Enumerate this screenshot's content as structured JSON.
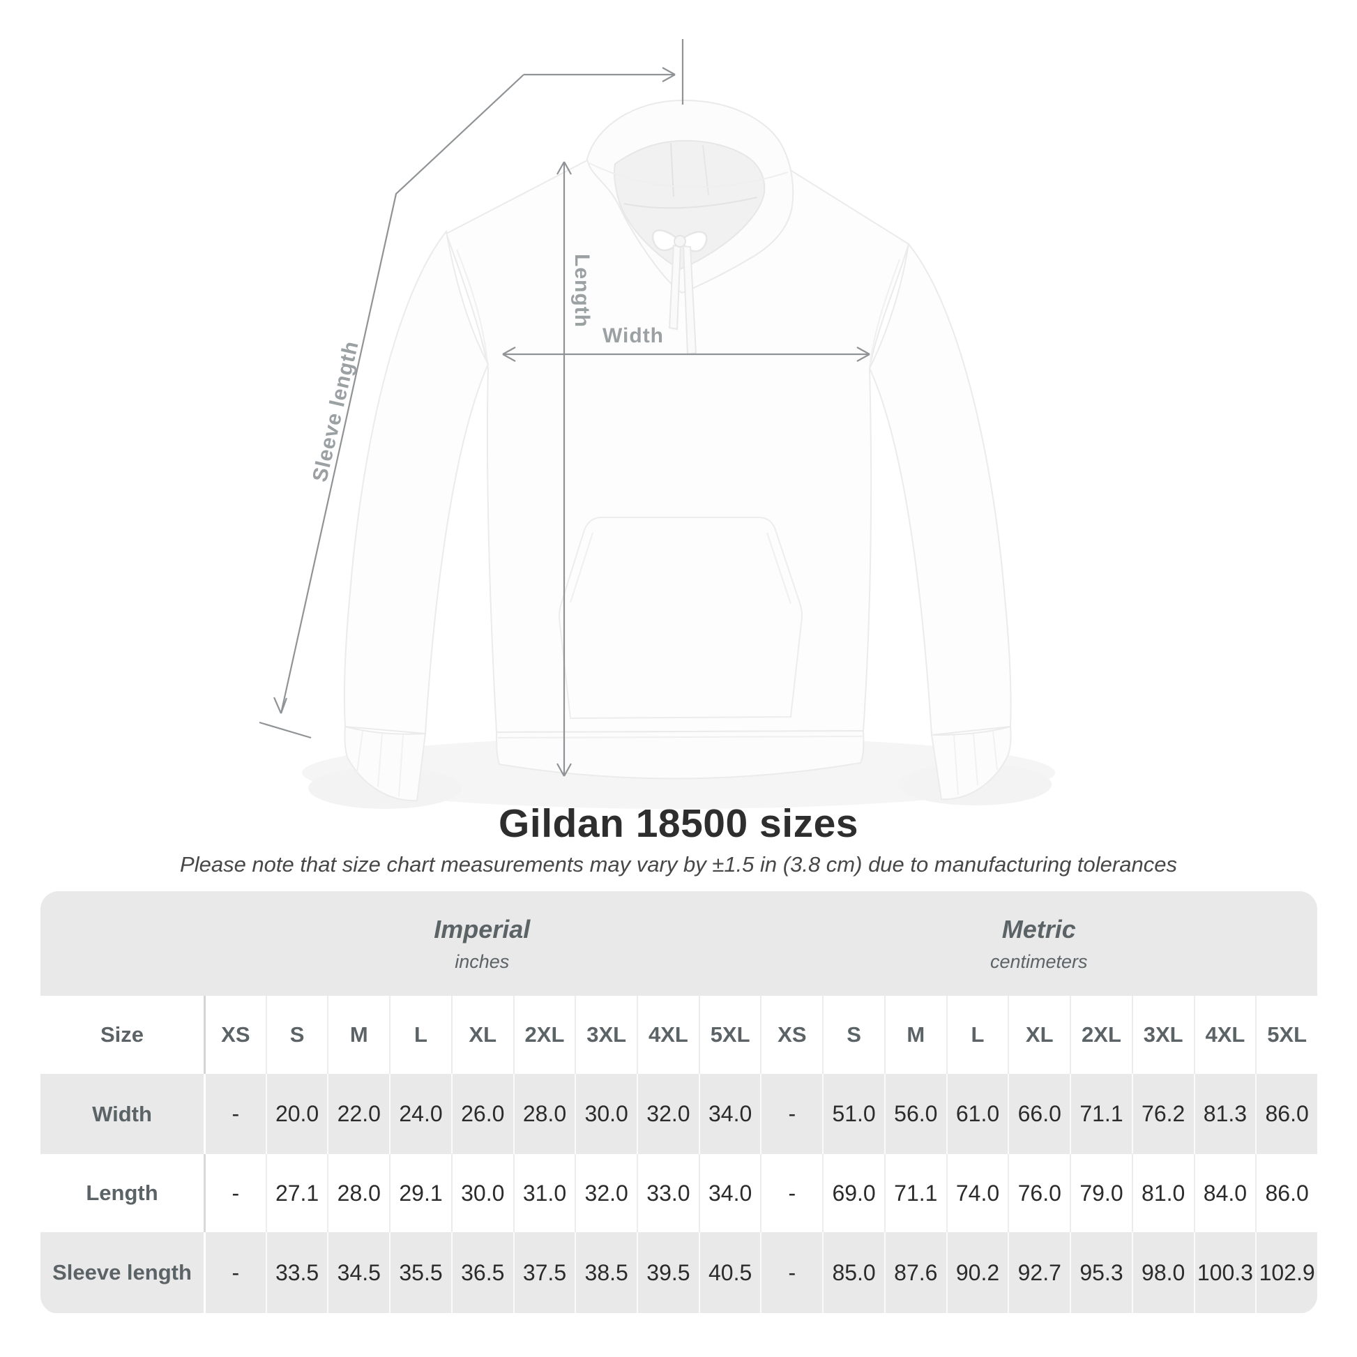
{
  "title": "Gildan 18500 sizes",
  "subtitle": "Please note that size chart measurements may vary by ±1.5 in (3.8 cm) due to manufacturing tolerances",
  "diagram": {
    "length_label": "Length",
    "width_label": "Width",
    "sleeve_label": "Sleeve length",
    "line_color": "#909396",
    "label_color": "#9ba0a3"
  },
  "table": {
    "size_label": "Size",
    "dash": "-"
  },
  "chart_data": {
    "type": "table",
    "title": "Gildan 18500 sizes",
    "note": "Measurements may vary by ±1.5 in (3.8 cm) due to manufacturing tolerances",
    "measurement_rows": [
      "Width",
      "Length",
      "Sleeve length"
    ],
    "groups": [
      {
        "label": "Imperial",
        "unit": "inches",
        "columns": [
          "XS",
          "S",
          "M",
          "L",
          "XL",
          "2XL",
          "3XL",
          "4XL",
          "5XL"
        ],
        "rows": [
          {
            "label": "Width",
            "values": [
              "-",
              "20.0",
              "22.0",
              "24.0",
              "26.0",
              "28.0",
              "30.0",
              "32.0",
              "34.0"
            ]
          },
          {
            "label": "Length",
            "values": [
              "-",
              "27.1",
              "28.0",
              "29.1",
              "30.0",
              "31.0",
              "32.0",
              "33.0",
              "34.0"
            ]
          },
          {
            "label": "Sleeve length",
            "values": [
              "-",
              "33.5",
              "34.5",
              "35.5",
              "36.5",
              "37.5",
              "38.5",
              "39.5",
              "40.5"
            ]
          }
        ]
      },
      {
        "label": "Metric",
        "unit": "centimeters",
        "columns": [
          "XS",
          "S",
          "M",
          "L",
          "XL",
          "2XL",
          "3XL",
          "4XL",
          "5XL"
        ],
        "rows": [
          {
            "label": "Width",
            "values": [
              "-",
              "51.0",
              "56.0",
              "61.0",
              "66.0",
              "71.1",
              "76.2",
              "81.3",
              "86.0"
            ]
          },
          {
            "label": "Length",
            "values": [
              "-",
              "69.0",
              "71.1",
              "74.0",
              "76.0",
              "79.0",
              "81.0",
              "84.0",
              "86.0"
            ]
          },
          {
            "label": "Sleeve length",
            "values": [
              "-",
              "85.0",
              "87.6",
              "90.2",
              "92.7",
              "95.3",
              "98.0",
              "100.3",
              "102.9"
            ]
          }
        ]
      }
    ]
  }
}
